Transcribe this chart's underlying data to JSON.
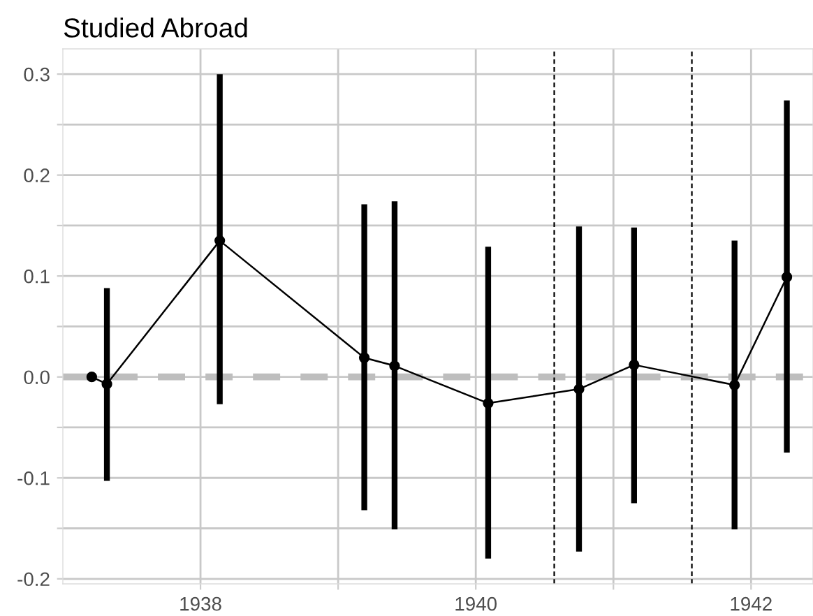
{
  "chart_data": {
    "type": "line",
    "title": "Studied Abroad",
    "x": [
      1937.21,
      1937.32,
      1938.14,
      1939.19,
      1939.41,
      1940.09,
      1940.75,
      1941.15,
      1941.88,
      1942.26
    ],
    "values": [
      0.0,
      -0.007,
      0.135,
      0.019,
      0.011,
      -0.026,
      -0.012,
      0.012,
      -0.008,
      0.099
    ],
    "errors": [
      null,
      [
        -0.103,
        0.088
      ],
      [
        -0.027,
        0.3
      ],
      [
        -0.132,
        0.171
      ],
      [
        -0.151,
        0.174
      ],
      [
        -0.18,
        0.129
      ],
      [
        -0.173,
        0.149
      ],
      [
        -0.125,
        0.148
      ],
      [
        -0.151,
        0.135
      ],
      [
        -0.075,
        0.274
      ]
    ],
    "color": "#000000",
    "marker": "circle",
    "line_style": "solid",
    "xlim": [
      1937.0,
      1942.45
    ],
    "ylim": [
      -0.205,
      0.325
    ],
    "xticks": [
      1938,
      {
        "value": 1939,
        "label": null
      },
      1940,
      {
        "value": 1941,
        "label": null
      },
      1942
    ],
    "yticks": [
      {
        "value": -0.2,
        "label": "-0.2"
      },
      {
        "value": -0.15,
        "label": null
      },
      {
        "value": -0.1,
        "label": "-0.1"
      },
      {
        "value": -0.05,
        "label": null
      },
      {
        "value": 0,
        "label": "0.0"
      },
      {
        "value": 0.05,
        "label": null
      },
      {
        "value": 0.1,
        "label": "0.1"
      },
      {
        "value": 0.15,
        "label": null
      },
      {
        "value": 0.2,
        "label": "0.2"
      },
      {
        "value": 0.25,
        "label": null
      },
      {
        "value": 0.3,
        "label": "0.3"
      }
    ],
    "grid": true,
    "ref_lines": [
      {
        "axis": "y",
        "value": 0,
        "color": "#bebebe",
        "line_style": "dashed"
      },
      {
        "axis": "x",
        "value": 1940.57,
        "color": "#000000",
        "line_style": "dashed"
      },
      {
        "axis": "x",
        "value": 1941.57,
        "color": "#000000",
        "line_style": "dashed"
      }
    ]
  }
}
